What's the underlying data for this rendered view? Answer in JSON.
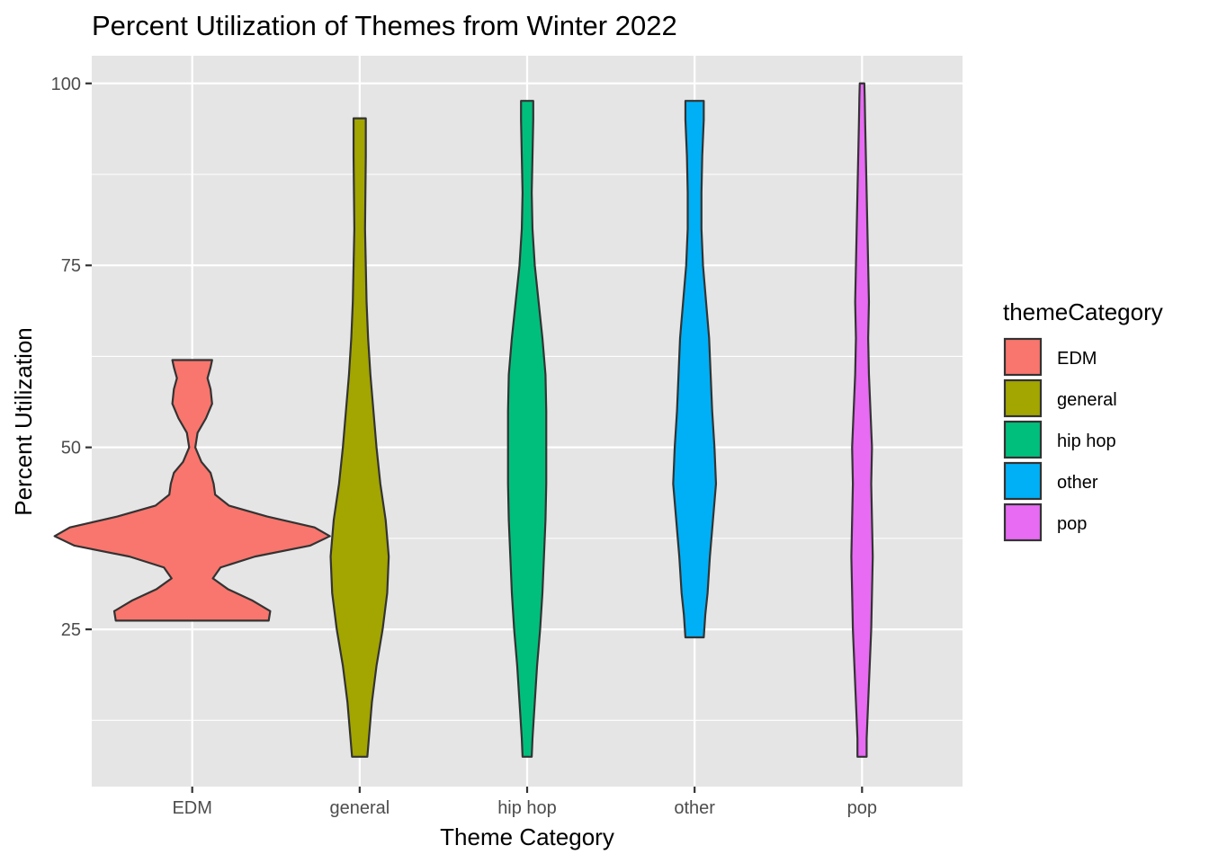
{
  "chart_data": {
    "type": "violin",
    "title": "Percent Utilization of Themes from Winter 2022",
    "xlabel": "Theme Category",
    "ylabel": "Percent Utilization",
    "categories": [
      "EDM",
      "general",
      "hip hop",
      "other",
      "pop"
    ],
    "yticks": [
      25,
      50,
      75,
      100
    ],
    "ylim": [
      3.4,
      103.8
    ],
    "grid": true,
    "panel_background": "#e5e5e5",
    "legend": {
      "title": "themeCategory",
      "placement": "right",
      "entries": [
        "EDM",
        "general",
        "hip hop",
        "other",
        "pop"
      ]
    },
    "series": [
      {
        "name": "EDM",
        "color": "#F8766D",
        "min": 26.2,
        "max": 62.0,
        "density": [
          [
            26.2,
            1.0
          ],
          [
            27.5,
            1.02
          ],
          [
            29,
            0.78
          ],
          [
            30.5,
            0.47
          ],
          [
            32,
            0.27
          ],
          [
            33.5,
            0.37
          ],
          [
            35,
            0.82
          ],
          [
            36.5,
            1.54
          ],
          [
            37.8,
            1.8
          ],
          [
            39,
            1.6
          ],
          [
            40.5,
            0.98
          ],
          [
            42,
            0.48
          ],
          [
            43.5,
            0.3
          ],
          [
            45,
            0.28
          ],
          [
            46.5,
            0.24
          ],
          [
            48,
            0.12
          ],
          [
            50,
            0.04
          ],
          [
            52,
            0.07
          ],
          [
            54,
            0.18
          ],
          [
            56,
            0.26
          ],
          [
            58,
            0.24
          ],
          [
            59.5,
            0.2
          ],
          [
            61,
            0.24
          ],
          [
            62.0,
            0.26
          ]
        ]
      },
      {
        "name": "general",
        "color": "#A3A500",
        "min": 7.5,
        "max": 95.2,
        "density": [
          [
            7.5,
            0.1
          ],
          [
            10,
            0.12
          ],
          [
            15,
            0.16
          ],
          [
            20,
            0.22
          ],
          [
            25,
            0.3
          ],
          [
            30,
            0.36
          ],
          [
            35,
            0.38
          ],
          [
            40,
            0.34
          ],
          [
            45,
            0.27
          ],
          [
            50,
            0.22
          ],
          [
            55,
            0.18
          ],
          [
            60,
            0.14
          ],
          [
            65,
            0.11
          ],
          [
            70,
            0.09
          ],
          [
            75,
            0.08
          ],
          [
            80,
            0.07
          ],
          [
            85,
            0.075
          ],
          [
            90,
            0.08
          ],
          [
            95.2,
            0.08
          ]
        ]
      },
      {
        "name": "hip hop",
        "color": "#00BF7D",
        "min": 7.5,
        "max": 97.6,
        "density": [
          [
            7.5,
            0.06
          ],
          [
            10,
            0.07
          ],
          [
            15,
            0.1
          ],
          [
            20,
            0.13
          ],
          [
            25,
            0.17
          ],
          [
            30,
            0.2
          ],
          [
            35,
            0.22
          ],
          [
            40,
            0.24
          ],
          [
            45,
            0.25
          ],
          [
            50,
            0.25
          ],
          [
            55,
            0.25
          ],
          [
            60,
            0.24
          ],
          [
            65,
            0.2
          ],
          [
            70,
            0.15
          ],
          [
            75,
            0.1
          ],
          [
            80,
            0.07
          ],
          [
            85,
            0.06
          ],
          [
            90,
            0.07
          ],
          [
            95,
            0.08
          ],
          [
            97.6,
            0.08
          ]
        ]
      },
      {
        "name": "other",
        "color": "#00B0F6",
        "min": 23.9,
        "max": 97.6,
        "density": [
          [
            23.9,
            0.12
          ],
          [
            27,
            0.14
          ],
          [
            30,
            0.17
          ],
          [
            35,
            0.2
          ],
          [
            40,
            0.24
          ],
          [
            45,
            0.28
          ],
          [
            50,
            0.26
          ],
          [
            55,
            0.23
          ],
          [
            60,
            0.21
          ],
          [
            65,
            0.19
          ],
          [
            70,
            0.15
          ],
          [
            75,
            0.11
          ],
          [
            80,
            0.09
          ],
          [
            85,
            0.09
          ],
          [
            90,
            0.1
          ],
          [
            95,
            0.12
          ],
          [
            97.6,
            0.12
          ]
        ]
      },
      {
        "name": "pop",
        "color": "#E76BF3",
        "min": 7.5,
        "max": 100,
        "density": [
          [
            7.5,
            0.06
          ],
          [
            10,
            0.06
          ],
          [
            15,
            0.08
          ],
          [
            20,
            0.1
          ],
          [
            25,
            0.12
          ],
          [
            30,
            0.13
          ],
          [
            35,
            0.14
          ],
          [
            40,
            0.13
          ],
          [
            45,
            0.12
          ],
          [
            50,
            0.13
          ],
          [
            55,
            0.11
          ],
          [
            60,
            0.09
          ],
          [
            65,
            0.08
          ],
          [
            70,
            0.09
          ],
          [
            75,
            0.08
          ],
          [
            80,
            0.07
          ],
          [
            85,
            0.06
          ],
          [
            90,
            0.05
          ],
          [
            95,
            0.04
          ],
          [
            98,
            0.035
          ],
          [
            100,
            0.03
          ]
        ]
      }
    ]
  }
}
